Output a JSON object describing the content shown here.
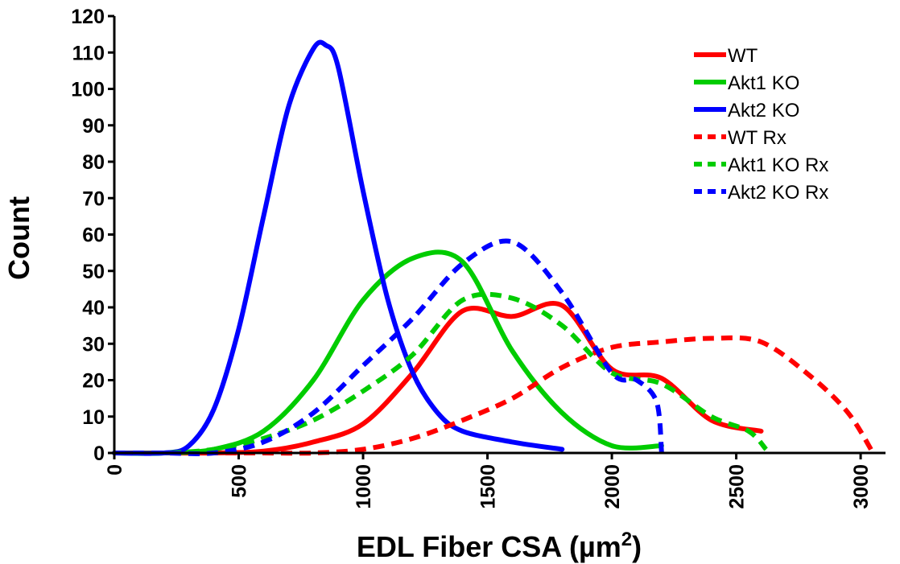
{
  "chart_data": {
    "type": "line",
    "title": "",
    "xlabel": "EDL Fiber CSA (µm²)",
    "xlabel_parts": {
      "main": "EDL Fiber CSA (",
      "unit": "µm",
      "sup": "2",
      "close": ")"
    },
    "ylabel": "Count",
    "xlim": [
      0,
      3100
    ],
    "ylim": [
      0,
      120
    ],
    "x_ticks": [
      0,
      500,
      1000,
      1500,
      2000,
      2500,
      3000
    ],
    "y_ticks": [
      0,
      10,
      20,
      30,
      40,
      50,
      60,
      70,
      80,
      90,
      100,
      110,
      120
    ],
    "grid": false,
    "legend_position": "top-right",
    "series": [
      {
        "name": "WT",
        "color": "#ff0000",
        "style": "solid",
        "x": [
          0,
          200,
          400,
          600,
          800,
          1000,
          1200,
          1400,
          1600,
          1800,
          2000,
          2200,
          2400,
          2600
        ],
        "y": [
          0,
          0,
          0,
          0.5,
          3,
          8,
          22,
          39,
          37.5,
          40.5,
          23,
          20.5,
          9,
          6
        ]
      },
      {
        "name": "Akt1 KO",
        "color": "#00cc00",
        "style": "solid",
        "x": [
          0,
          200,
          400,
          600,
          800,
          1000,
          1200,
          1400,
          1600,
          1800,
          2000,
          2200
        ],
        "y": [
          0,
          0,
          1,
          6,
          20,
          42,
          53.5,
          52.5,
          28,
          11,
          2,
          2
        ]
      },
      {
        "name": "Akt2 KO",
        "color": "#0000ff",
        "style": "solid",
        "x": [
          0,
          200,
          300,
          400,
          500,
          600,
          700,
          800,
          850,
          900,
          1000,
          1100,
          1200,
          1300,
          1400,
          1600,
          1800
        ],
        "y": [
          0,
          0,
          2,
          12,
          34,
          65,
          95,
          111,
          112,
          106,
          72,
          42,
          22,
          11,
          6,
          3,
          1
        ]
      },
      {
        "name": "WT Rx",
        "color": "#ff0000",
        "style": "dashed",
        "x": [
          0,
          400,
          600,
          800,
          1000,
          1200,
          1400,
          1600,
          1800,
          2000,
          2200,
          2400,
          2600,
          2800,
          2950,
          3050
        ],
        "y": [
          0,
          0,
          0,
          0,
          1,
          4,
          9,
          15,
          23.5,
          29,
          30.5,
          31.5,
          30.5,
          21,
          11,
          0
        ]
      },
      {
        "name": "Akt1 KO Rx",
        "color": "#00cc00",
        "style": "dashed",
        "x": [
          0,
          200,
          400,
          600,
          800,
          1000,
          1200,
          1400,
          1600,
          1800,
          2000,
          2200,
          2400,
          2550,
          2620
        ],
        "y": [
          0,
          0,
          1,
          4,
          9,
          17,
          27,
          42,
          42.5,
          35,
          22,
          19,
          10,
          6,
          1
        ]
      },
      {
        "name": "Akt2 KO Rx",
        "color": "#0000ff",
        "style": "dashed",
        "x": [
          0,
          200,
          400,
          600,
          800,
          1000,
          1200,
          1400,
          1600,
          1800,
          2000,
          2100,
          2180,
          2200
        ],
        "y": [
          0,
          0,
          0,
          3,
          11,
          24,
          37,
          52,
          58,
          44,
          22,
          20,
          14,
          0
        ]
      }
    ]
  }
}
